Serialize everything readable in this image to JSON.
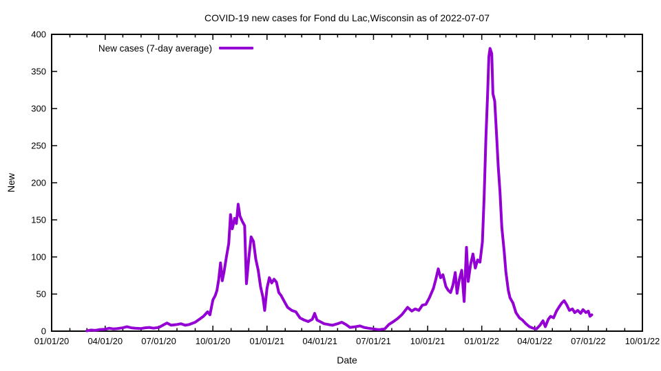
{
  "title": "COVID-19 new cases for Fond du Lac,Wisconsin as of 2022-07-07",
  "legend": {
    "label": "New cases (7-day average)"
  },
  "axes": {
    "x_label": "Date",
    "y_label": "New"
  },
  "chart_data": {
    "type": "line",
    "title": "COVID-19 new cases for Fond du Lac,Wisconsin as of 2022-07-07",
    "xlabel": "Date",
    "ylabel": "New",
    "grid": false,
    "legend_position": "inside top-left",
    "line_color": "#9400d3",
    "axis_color": "#000000",
    "ylim": [
      0,
      400
    ],
    "y_ticks": [
      0,
      50,
      100,
      150,
      200,
      250,
      300,
      350,
      400
    ],
    "x_range": [
      "2020-01-01",
      "2022-10-01"
    ],
    "x_tick_labels": [
      "01/01/20",
      "04/01/20",
      "07/01/20",
      "10/01/20",
      "01/01/21",
      "04/01/21",
      "07/01/21",
      "10/01/21",
      "01/01/22",
      "04/01/22",
      "07/01/22",
      "10/01/22"
    ],
    "series": [
      {
        "name": "New cases (7-day average)",
        "points": [
          [
            "2020-03-01",
            0.5
          ],
          [
            "2020-03-08",
            1.5
          ],
          [
            "2020-03-15",
            1
          ],
          [
            "2020-03-22",
            2
          ],
          [
            "2020-04-01",
            2.5
          ],
          [
            "2020-04-08",
            4
          ],
          [
            "2020-04-15",
            3
          ],
          [
            "2020-04-22",
            3.5
          ],
          [
            "2020-05-01",
            4.5
          ],
          [
            "2020-05-08",
            6
          ],
          [
            "2020-05-15",
            4.5
          ],
          [
            "2020-05-22",
            4
          ],
          [
            "2020-06-01",
            3.5
          ],
          [
            "2020-06-08",
            4.5
          ],
          [
            "2020-06-15",
            5
          ],
          [
            "2020-06-22",
            4
          ],
          [
            "2020-07-01",
            5
          ],
          [
            "2020-07-08",
            8
          ],
          [
            "2020-07-15",
            11
          ],
          [
            "2020-07-22",
            8
          ],
          [
            "2020-08-01",
            9
          ],
          [
            "2020-08-08",
            10
          ],
          [
            "2020-08-15",
            8
          ],
          [
            "2020-08-22",
            9
          ],
          [
            "2020-09-01",
            12
          ],
          [
            "2020-09-08",
            16
          ],
          [
            "2020-09-15",
            20
          ],
          [
            "2020-09-22",
            26
          ],
          [
            "2020-09-26",
            22
          ],
          [
            "2020-10-01",
            42
          ],
          [
            "2020-10-05",
            48
          ],
          [
            "2020-10-08",
            55
          ],
          [
            "2020-10-11",
            70
          ],
          [
            "2020-10-14",
            92
          ],
          [
            "2020-10-17",
            68
          ],
          [
            "2020-10-20",
            80
          ],
          [
            "2020-10-24",
            100
          ],
          [
            "2020-10-28",
            118
          ],
          [
            "2020-10-31",
            157
          ],
          [
            "2020-11-03",
            138
          ],
          [
            "2020-11-07",
            152
          ],
          [
            "2020-11-10",
            145
          ],
          [
            "2020-11-13",
            171
          ],
          [
            "2020-11-16",
            155
          ],
          [
            "2020-11-20",
            148
          ],
          [
            "2020-11-24",
            142
          ],
          [
            "2020-11-27",
            64
          ],
          [
            "2020-12-01",
            98
          ],
          [
            "2020-12-05",
            127
          ],
          [
            "2020-12-09",
            121
          ],
          [
            "2020-12-13",
            97
          ],
          [
            "2020-12-17",
            82
          ],
          [
            "2020-12-21",
            60
          ],
          [
            "2020-12-25",
            46
          ],
          [
            "2020-12-28",
            28
          ],
          [
            "2021-01-01",
            58
          ],
          [
            "2021-01-05",
            72
          ],
          [
            "2021-01-09",
            65
          ],
          [
            "2021-01-13",
            70
          ],
          [
            "2021-01-17",
            66
          ],
          [
            "2021-01-21",
            52
          ],
          [
            "2021-01-25",
            48
          ],
          [
            "2021-01-29",
            42
          ],
          [
            "2021-02-05",
            32
          ],
          [
            "2021-02-12",
            28
          ],
          [
            "2021-02-19",
            26
          ],
          [
            "2021-02-26",
            18
          ],
          [
            "2021-03-05",
            15
          ],
          [
            "2021-03-12",
            13
          ],
          [
            "2021-03-19",
            16
          ],
          [
            "2021-03-23",
            24
          ],
          [
            "2021-03-27",
            15
          ],
          [
            "2021-04-01",
            13
          ],
          [
            "2021-04-08",
            10
          ],
          [
            "2021-04-15",
            9
          ],
          [
            "2021-04-22",
            8
          ],
          [
            "2021-05-01",
            10
          ],
          [
            "2021-05-08",
            12
          ],
          [
            "2021-05-15",
            9
          ],
          [
            "2021-05-22",
            5
          ],
          [
            "2021-06-01",
            6
          ],
          [
            "2021-06-08",
            7
          ],
          [
            "2021-06-15",
            5
          ],
          [
            "2021-06-22",
            4
          ],
          [
            "2021-07-01",
            3
          ],
          [
            "2021-07-10",
            2
          ],
          [
            "2021-07-20",
            3
          ],
          [
            "2021-07-27",
            9
          ],
          [
            "2021-08-04",
            13
          ],
          [
            "2021-08-11",
            17
          ],
          [
            "2021-08-18",
            22
          ],
          [
            "2021-08-24",
            28
          ],
          [
            "2021-08-28",
            32
          ],
          [
            "2021-09-04",
            27
          ],
          [
            "2021-09-10",
            30
          ],
          [
            "2021-09-16",
            28
          ],
          [
            "2021-09-22",
            35
          ],
          [
            "2021-09-28",
            36
          ],
          [
            "2021-10-04",
            45
          ],
          [
            "2021-10-11",
            58
          ],
          [
            "2021-10-15",
            70
          ],
          [
            "2021-10-19",
            84
          ],
          [
            "2021-10-23",
            72
          ],
          [
            "2021-10-27",
            76
          ],
          [
            "2021-11-01",
            60
          ],
          [
            "2021-11-05",
            55
          ],
          [
            "2021-11-09",
            52
          ],
          [
            "2021-11-13",
            62
          ],
          [
            "2021-11-17",
            79
          ],
          [
            "2021-11-20",
            51
          ],
          [
            "2021-11-24",
            70
          ],
          [
            "2021-11-28",
            82
          ],
          [
            "2021-12-02",
            40
          ],
          [
            "2021-12-06",
            113
          ],
          [
            "2021-12-09",
            67
          ],
          [
            "2021-12-13",
            90
          ],
          [
            "2021-12-17",
            104
          ],
          [
            "2021-12-21",
            85
          ],
          [
            "2021-12-25",
            96
          ],
          [
            "2021-12-29",
            93
          ],
          [
            "2022-01-02",
            120
          ],
          [
            "2022-01-05",
            180
          ],
          [
            "2022-01-08",
            260
          ],
          [
            "2022-01-11",
            320
          ],
          [
            "2022-01-13",
            370
          ],
          [
            "2022-01-15",
            381
          ],
          [
            "2022-01-18",
            374
          ],
          [
            "2022-01-20",
            320
          ],
          [
            "2022-01-23",
            310
          ],
          [
            "2022-01-26",
            266
          ],
          [
            "2022-01-29",
            222
          ],
          [
            "2022-02-01",
            187
          ],
          [
            "2022-02-04",
            140
          ],
          [
            "2022-02-08",
            108
          ],
          [
            "2022-02-11",
            80
          ],
          [
            "2022-02-15",
            55
          ],
          [
            "2022-02-18",
            45
          ],
          [
            "2022-02-23",
            38
          ],
          [
            "2022-02-28",
            25
          ],
          [
            "2022-03-06",
            18
          ],
          [
            "2022-03-11",
            15
          ],
          [
            "2022-03-17",
            10
          ],
          [
            "2022-03-23",
            6
          ],
          [
            "2022-03-29",
            4
          ],
          [
            "2022-04-04",
            3
          ],
          [
            "2022-04-10",
            8
          ],
          [
            "2022-04-15",
            14
          ],
          [
            "2022-04-19",
            6
          ],
          [
            "2022-04-24",
            16
          ],
          [
            "2022-04-28",
            20
          ],
          [
            "2022-05-03",
            18
          ],
          [
            "2022-05-08",
            27
          ],
          [
            "2022-05-12",
            32
          ],
          [
            "2022-05-17",
            38
          ],
          [
            "2022-05-21",
            41
          ],
          [
            "2022-05-25",
            36
          ],
          [
            "2022-05-30",
            28
          ],
          [
            "2022-06-04",
            30
          ],
          [
            "2022-06-08",
            25
          ],
          [
            "2022-06-13",
            28
          ],
          [
            "2022-06-18",
            24
          ],
          [
            "2022-06-22",
            29
          ],
          [
            "2022-06-27",
            25
          ],
          [
            "2022-07-01",
            27
          ],
          [
            "2022-07-04",
            20
          ],
          [
            "2022-07-07",
            22
          ]
        ]
      }
    ]
  }
}
